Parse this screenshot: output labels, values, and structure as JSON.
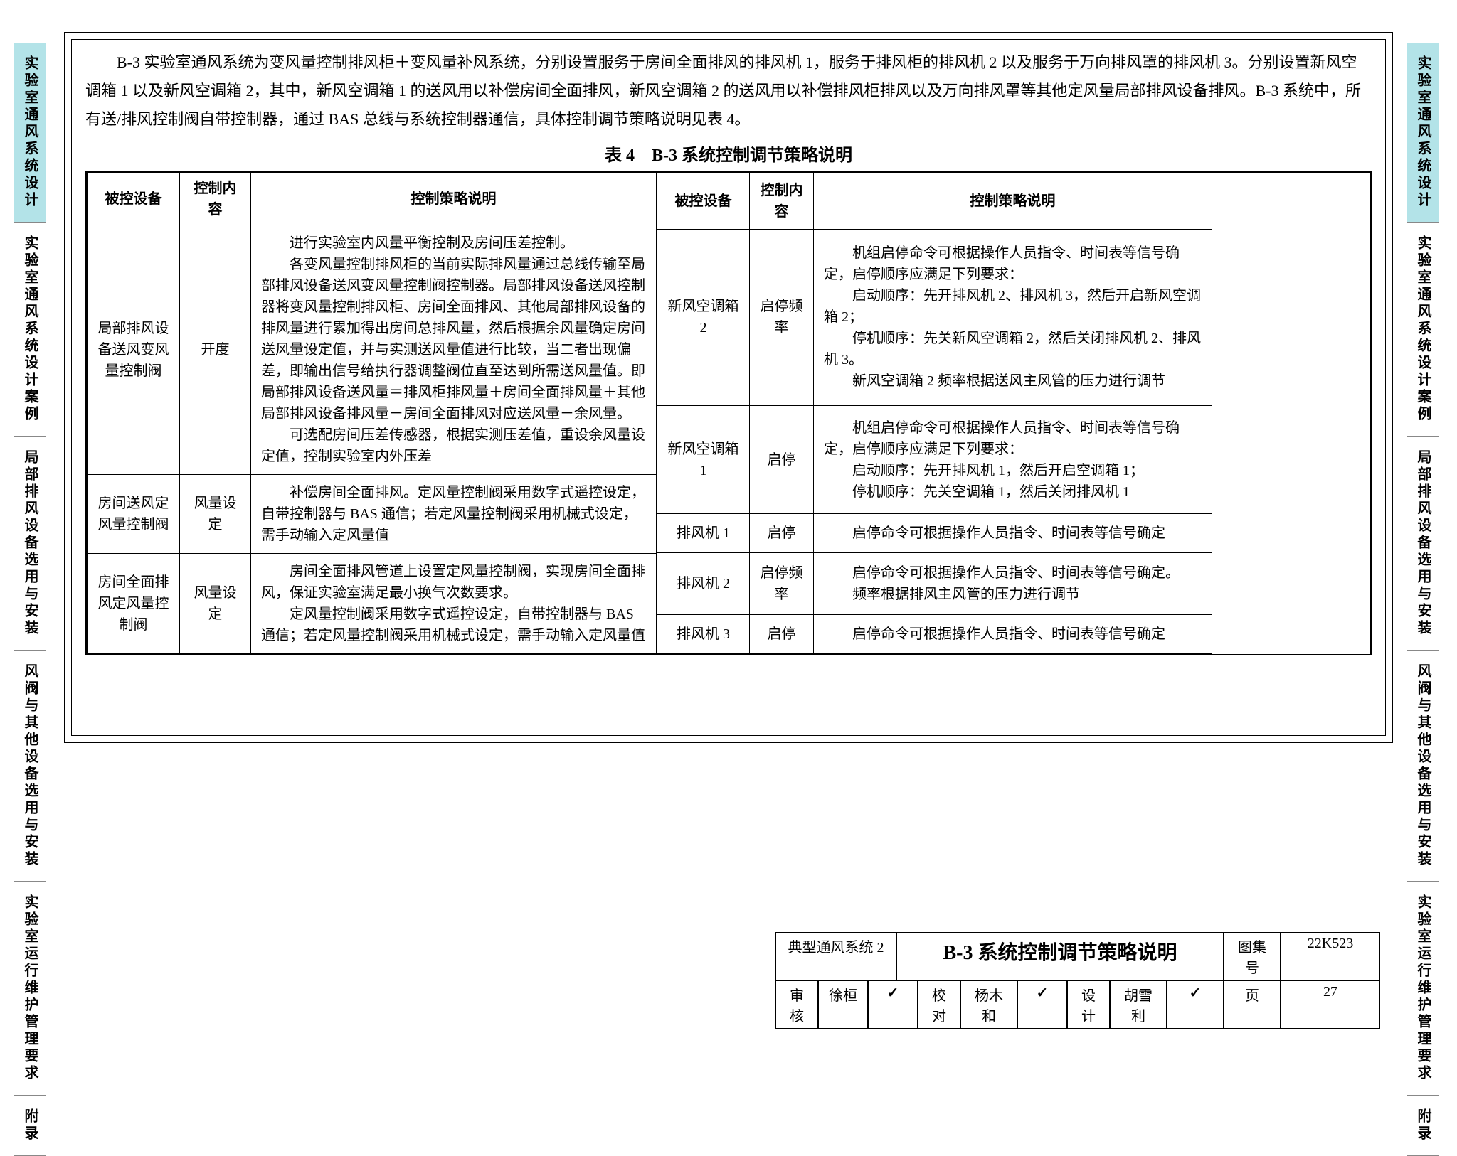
{
  "sideTabs": [
    {
      "label": "实验室通风系统设计",
      "active": true
    },
    {
      "label": "实验室通风系统设计案例",
      "active": false
    },
    {
      "label": "局部排风设备选用与安装",
      "active": false
    },
    {
      "label": "风阀与其他设备选用与安装",
      "active": false
    },
    {
      "label": "实验室运行维护管理要求",
      "active": false
    },
    {
      "label": "附录",
      "active": false
    }
  ],
  "intro": "B-3 实验室通风系统为变风量控制排风柜＋变风量补风系统，分别设置服务于房间全面排风的排风机 1，服务于排风柜的排风机 2 以及服务于万向排风罩的排风机 3。分别设置新风空调箱 1 以及新风空调箱 2，其中，新风空调箱 1 的送风用以补偿房间全面排风，新风空调箱 2 的送风用以补偿排风柜排风以及万向排风罩等其他定风量局部排风设备排风。B-3 系统中，所有送/排风控制阀自带控制器，通过 BAS 总线与系统控制器通信，具体控制调节策略说明见表 4。",
  "tableTitle": "表 4　B-3 系统控制调节策略说明",
  "headers": {
    "dev": "被控设备",
    "ctrl": "控制内容",
    "desc": "控制策略说明"
  },
  "leftRows": [
    {
      "dev": "局部排风设备送风变风量控制阀",
      "ctrl": "开度",
      "desc": "　　进行实验室内风量平衡控制及房间压差控制。\n　　各变风量控制排风柜的当前实际排风量通过总线传输至局部排风设备送风变风量控制阀控制器。局部排风设备送风控制器将变风量控制排风柜、房间全面排风、其他局部排风设备的排风量进行累加得出房间总排风量，然后根据余风量确定房间送风量设定值，并与实测送风量值进行比较，当二者出现偏差，即输出信号给执行器调整阀位直至达到所需送风量值。即局部排风设备送风量＝排风柜排风量＋房间全面排风量＋其他局部排风设备排风量－房间全面排风对应送风量－余风量。\n　　可选配房间压差传感器，根据实测压差值，重设余风量设定值，控制实验室内外压差"
    },
    {
      "dev": "房间送风定风量控制阀",
      "ctrl": "风量设定",
      "desc": "　　补偿房间全面排风。定风量控制阀采用数字式遥控设定，自带控制器与 BAS 通信；若定风量控制阀采用机械式设定，需手动输入定风量值"
    },
    {
      "dev": "房间全面排风定风量控制阀",
      "ctrl": "风量设定",
      "desc": "　　房间全面排风管道上设置定风量控制阀，实现房间全面排风，保证实验室满足最小换气次数要求。\n　　定风量控制阀采用数字式遥控设定，自带控制器与 BAS 通信；若定风量控制阀采用机械式设定，需手动输入定风量值"
    }
  ],
  "rightRows": [
    {
      "dev": "新风空调箱 2",
      "ctrl": "启停频率",
      "desc": "　　机组启停命令可根据操作人员指令、时间表等信号确定，启停顺序应满足下列要求：\n　　启动顺序：先开排风机 2、排风机 3，然后开启新风空调箱 2；\n　　停机顺序：先关新风空调箱 2，然后关闭排风机 2、排风机 3。\n　　新风空调箱 2 频率根据送风主风管的压力进行调节"
    },
    {
      "dev": "新风空调箱 1",
      "ctrl": "启停",
      "desc": "　　机组启停命令可根据操作人员指令、时间表等信号确定，启停顺序应满足下列要求：\n　　启动顺序：先开排风机 1，然后开启空调箱 1；\n　　停机顺序：先关空调箱 1，然后关闭排风机 1"
    },
    {
      "dev": "排风机 1",
      "ctrl": "启停",
      "desc": "　　启停命令可根据操作人员指令、时间表等信号确定"
    },
    {
      "dev": "排风机 2",
      "ctrl": "启停频率",
      "desc": "　　启停命令可根据操作人员指令、时间表等信号确定。\n　　频率根据排风主风管的压力进行调节"
    },
    {
      "dev": "排风机 3",
      "ctrl": "启停",
      "desc": "　　启停命令可根据操作人员指令、时间表等信号确定"
    }
  ],
  "titleBlock": {
    "sysLabel": "典型通风系统 2",
    "title": "B-3 系统控制调节策略说明",
    "atlasLabel": "图集号",
    "atlasNo": "22K523",
    "review": "审核",
    "reviewer": "徐桓",
    "proof": "校对",
    "proofer": "杨木和",
    "design": "设计",
    "designer": "胡雪利",
    "pageLabel": "页",
    "pageNo": "27"
  }
}
